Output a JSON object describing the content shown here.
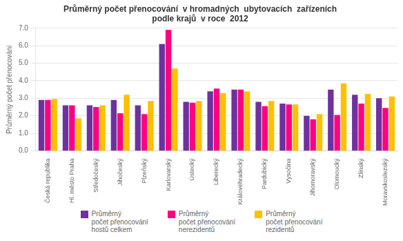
{
  "chart_data": {
    "type": "bar",
    "title": "Průměrný počet přenocování  v hromadných  ubytovacích  zařízeních\npodle krajů  v roce  2012",
    "ylabel": "Průměrný počet přenocování",
    "categories": [
      "Česká republika",
      "Hl. město Praha",
      "Středočeský",
      "Jihočeský",
      "Plzeňský",
      "Karlovarský",
      "Ústecký",
      "Liberecký",
      "Královéhradecký",
      "Pardubický",
      "Vysočina",
      "Jihomoravský",
      "Olomoucký",
      "Zlínský",
      "Moravskoslezský"
    ],
    "series": [
      {
        "name": "Průměrný\npočet přenocování\nhostů celkem",
        "color": "#7030A0",
        "values": [
          2.9,
          2.6,
          2.6,
          2.9,
          2.6,
          6.1,
          2.8,
          3.4,
          3.5,
          2.8,
          2.7,
          2.0,
          3.5,
          3.2,
          3.0
        ]
      },
      {
        "name": "Průměrný\npočet přenocování\nnerezidentů",
        "color": "#FF0080",
        "values": [
          2.9,
          2.6,
          2.5,
          2.15,
          2.1,
          6.9,
          2.75,
          3.55,
          3.5,
          2.55,
          2.65,
          1.8,
          2.05,
          2.7,
          2.45
        ]
      },
      {
        "name": "Průměrný\npočet přenocování\nrezidentů",
        "color": "#FFC000",
        "values": [
          2.95,
          1.85,
          2.6,
          3.2,
          2.85,
          4.7,
          2.85,
          3.3,
          3.4,
          2.85,
          2.65,
          2.1,
          3.85,
          3.25,
          3.1
        ]
      }
    ],
    "ylim": [
      0,
      7.0
    ],
    "yticks": [
      {
        "value": 0,
        "label": "0.0"
      },
      {
        "value": 1,
        "label": "1.0"
      },
      {
        "value": 2,
        "label": "2.0"
      },
      {
        "value": 3,
        "label": "3.0"
      },
      {
        "value": 4,
        "label": "4.0"
      },
      {
        "value": 5,
        "label": "5.0"
      },
      {
        "value": 6,
        "label": "6.0"
      },
      {
        "value": 7,
        "label": "7.0"
      }
    ],
    "grid": true,
    "legend": "bottom"
  }
}
